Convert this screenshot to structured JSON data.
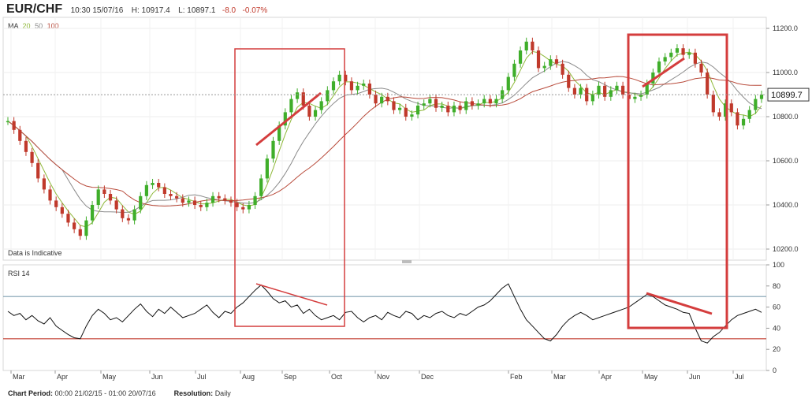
{
  "header": {
    "symbol": "EUR/CHF",
    "time": "10:30 15/07/16",
    "high": "H: 10917.4",
    "low": "L: 10897.1",
    "change": "-8.0",
    "change_pct": "-0.07%"
  },
  "ma_legend": {
    "label": "MA",
    "p20": "20",
    "p50": "50",
    "p100": "100",
    "colors": {
      "ma20": "#8fb83a",
      "ma50": "#8a8a8a",
      "ma100": "#b84a3a"
    }
  },
  "indicative_note": "Data is Indicative",
  "rsi_label": "RSI 14",
  "footer": {
    "period_label": "Chart Period:",
    "period_value": "00:00 21/02/15 - 01:00 20/07/16",
    "resolution_label": "Resolution:",
    "resolution_value": "Daily"
  },
  "chart_data": {
    "type": "candlestick",
    "price_axis": {
      "ticks": [
        "11200.0",
        "11000.0",
        "10800.0",
        "10600.0",
        "10400.0",
        "10200.0"
      ],
      "ylim": [
        10150,
        11250
      ]
    },
    "last_price": "10899.7",
    "rsi_axis": {
      "ticks": [
        "100",
        "80",
        "60",
        "40",
        "20",
        "0"
      ],
      "ylim": [
        0,
        100
      ],
      "overbought": 70,
      "oversold": 30
    },
    "months": [
      "Mar",
      "Apr",
      "May",
      "Jun",
      "Jul",
      "Aug",
      "Sep",
      "Oct",
      "Nov",
      "Dec",
      "Feb",
      "Mar",
      "Apr",
      "May",
      "Jun",
      "Jul"
    ],
    "colors": {
      "up": "#3fae2a",
      "down": "#c0392b",
      "annotation": "#d43d3d",
      "rsi_line": "#111111",
      "ob_line": "#7f9fb0",
      "os_line": "#c0392b"
    },
    "price_series": [
      10780,
      10740,
      10690,
      10640,
      10590,
      10520,
      10470,
      10420,
      10390,
      10360,
      10320,
      10290,
      10260,
      10330,
      10400,
      10470,
      10450,
      10420,
      10380,
      10340,
      10330,
      10380,
      10440,
      10490,
      10500,
      10480,
      10450,
      10440,
      10430,
      10410,
      10420,
      10400,
      10390,
      10410,
      10440,
      10430,
      10420,
      10410,
      10390,
      10380,
      10400,
      10440,
      10520,
      10610,
      10690,
      10760,
      10820,
      10880,
      10910,
      10850,
      10800,
      10830,
      10870,
      10920,
      10960,
      10990,
      10960,
      10920,
      10940,
      10950,
      10900,
      10860,
      10890,
      10870,
      10830,
      10840,
      10800,
      10810,
      10850,
      10860,
      10880,
      10840,
      10850,
      10820,
      10850,
      10830,
      10870,
      10850,
      10860,
      10880,
      10860,
      10880,
      10920,
      10980,
      11040,
      11100,
      11140,
      11100,
      11020,
      11030,
      11060,
      11040,
      10990,
      10930,
      10900,
      10930,
      10870,
      10900,
      10940,
      10890,
      10920,
      10940,
      10900,
      10880,
      10890,
      10900,
      10950,
      11000,
      11050,
      11070,
      11090,
      11110,
      11080,
      11090,
      11040,
      11000,
      10900,
      10820,
      10800,
      10860,
      10820,
      10760,
      10790,
      10830,
      10880,
      10900
    ],
    "rsi_series": [
      56,
      52,
      54,
      48,
      52,
      47,
      44,
      50,
      42,
      38,
      34,
      31,
      30,
      42,
      52,
      58,
      54,
      48,
      50,
      46,
      52,
      58,
      63,
      56,
      51,
      58,
      54,
      60,
      55,
      50,
      52,
      54,
      58,
      62,
      55,
      50,
      56,
      54,
      60,
      64,
      70,
      76,
      81,
      75,
      68,
      64,
      66,
      60,
      62,
      54,
      58,
      52,
      48,
      50,
      52,
      48,
      55,
      56,
      50,
      46,
      50,
      52,
      48,
      55,
      52,
      50,
      56,
      54,
      48,
      52,
      50,
      54,
      56,
      52,
      50,
      54,
      52,
      56,
      60,
      62,
      66,
      72,
      78,
      82,
      70,
      58,
      48,
      42,
      36,
      30,
      28,
      34,
      42,
      48,
      52,
      55,
      52,
      48,
      50,
      52,
      54,
      56,
      58,
      60,
      64,
      68,
      72,
      70,
      66,
      62,
      60,
      58,
      55,
      54,
      40,
      28,
      26,
      32,
      36,
      42,
      48,
      52,
      54,
      56,
      58,
      55
    ],
    "rsi_visible_ticks_label_count": 6,
    "annotations": [
      {
        "type": "box",
        "from": "Aug",
        "to": "Oct"
      },
      {
        "type": "box",
        "from": "Apr",
        "to": "Jun"
      }
    ]
  }
}
